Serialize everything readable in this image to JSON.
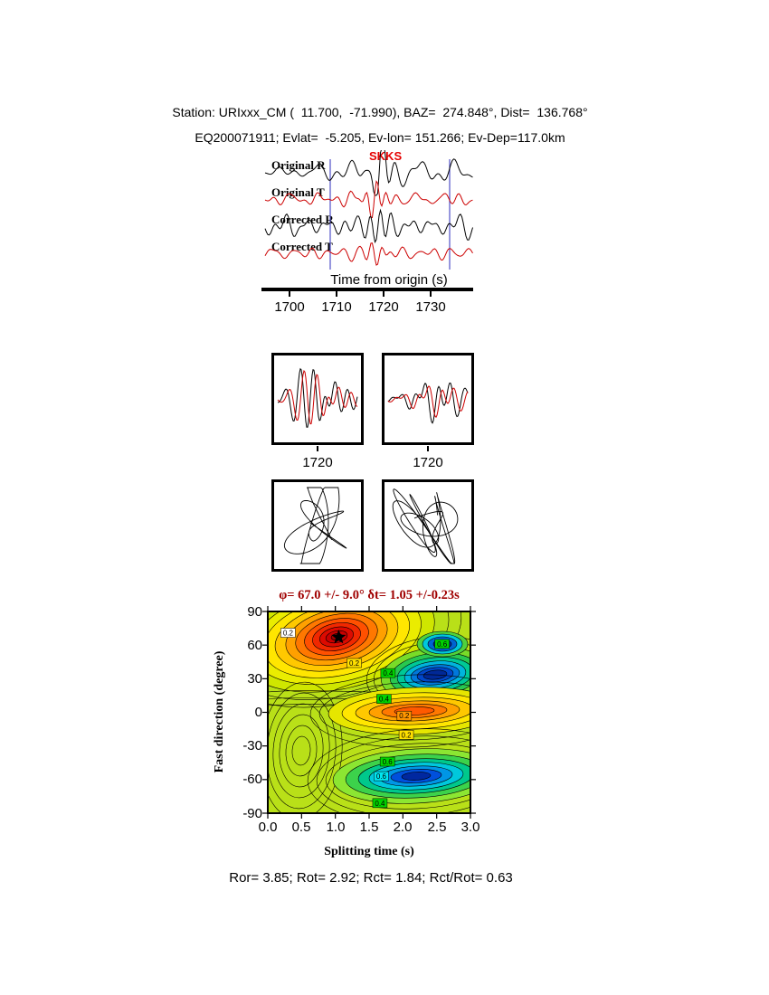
{
  "header": {
    "line1": "Station: URIxxx_CM (  11.700,  -71.990), BAZ=  274.848°, Dist=  136.768°",
    "line2": "EQ200071911; Evlat=  -5.205, Ev-lon= 151.266; Ev-Dep=117.0km"
  },
  "seismogram_panel": {
    "phase_label": "SKKS",
    "trace_labels": [
      "Original R",
      "Original T",
      "Corrected R",
      "Corrected T"
    ],
    "axis_label": "Time from origin (s)",
    "tick_labels": [
      "1700",
      "1710",
      "1720",
      "1730"
    ]
  },
  "window_panels": {
    "left_tick_label": "1720",
    "right_tick_label": "1720"
  },
  "chart_data": {
    "type": "heatmap",
    "title": "φ= 67.0 +/- 9.0° δt= 1.05 +/-0.23s",
    "xlabel": "Splitting time (s)",
    "ylabel": "Fast direction (degree)",
    "xlim": [
      0.0,
      3.0
    ],
    "ylim": [
      -90,
      90
    ],
    "x_tick_labels": [
      "0.0",
      "0.5",
      "1.0",
      "1.5",
      "2.0",
      "2.5",
      "3.0"
    ],
    "y_tick_labels": [
      "90",
      "60",
      "30",
      "0",
      "-30",
      "-60",
      "-90"
    ],
    "grid": false,
    "best_fit": {
      "fast_direction_deg": 67.0,
      "fast_direction_err_deg": 9.0,
      "splitting_time_s": 1.05,
      "splitting_time_err_s": 0.23
    },
    "marker": {
      "type": "star",
      "x": 1.05,
      "y": 67
    },
    "contour_labels": [
      {
        "text": "0.2",
        "x": 0.3,
        "y": 71,
        "bg": "#ffffff"
      },
      {
        "text": "0.2",
        "x": 1.28,
        "y": 44,
        "bg": "#ffe000"
      },
      {
        "text": "0.4",
        "x": 1.78,
        "y": 35,
        "bg": "#00d200"
      },
      {
        "text": "0.6",
        "x": 2.58,
        "y": 61,
        "bg": "#00d200"
      },
      {
        "text": "0.4",
        "x": 1.72,
        "y": 12,
        "bg": "#00d200"
      },
      {
        "text": "0.2",
        "x": 2.02,
        "y": -3,
        "bg": "#ff9600"
      },
      {
        "text": "0.2",
        "x": 2.05,
        "y": -20,
        "bg": "#ffe000"
      },
      {
        "text": "0.6",
        "x": 1.77,
        "y": -44,
        "bg": "#00d200"
      },
      {
        "text": "0.6",
        "x": 1.68,
        "y": -57,
        "bg": "#00e6f0"
      },
      {
        "text": "0.4",
        "x": 1.66,
        "y": -81,
        "bg": "#00d200"
      }
    ]
  },
  "stats_line": "Ror= 3.85; Rot= 2.92; Rct= 1.84; Rct/Rot= 0.63",
  "colors": {
    "radial_trace": "#000000",
    "transverse_trace": "#cc0000",
    "phase_label": "#e60000",
    "window_marker": "#5050c8",
    "title_color": "#a00000",
    "surface_background": "#b9e018"
  }
}
